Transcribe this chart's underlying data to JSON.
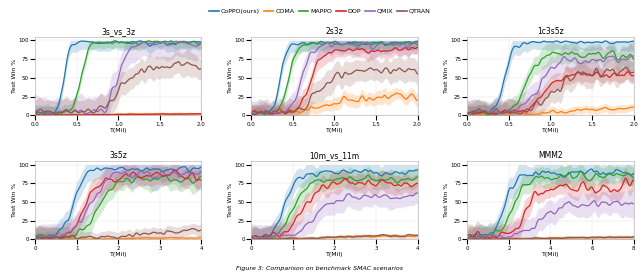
{
  "title": "Figure 3: Comparison on benchmark SMAC scenarios",
  "legend_labels": [
    "CoPPO(ours)",
    "COMA",
    "MAPPO",
    "DOP",
    "QMIX",
    "QTRAN"
  ],
  "colors": [
    "#1f77b4",
    "#ff7f0e",
    "#2ca02c",
    "#d62728",
    "#9467bd",
    "#8c564b"
  ],
  "subplots": [
    {
      "title": "3s_vs_3z",
      "xlabel": "T(Mil)",
      "ylabel": "Test Win %",
      "xmax": 2,
      "xticks": [
        0,
        0.5,
        1.0,
        1.5,
        2.0
      ]
    },
    {
      "title": "2s3z",
      "xlabel": "T(Mil)",
      "ylabel": "Test Win %",
      "xmax": 2,
      "xticks": [
        0,
        0.5,
        1.0,
        1.5,
        2.0
      ]
    },
    {
      "title": "1c3s5z",
      "xlabel": "T(Mil)",
      "ylabel": "Test Win %",
      "xmax": 2,
      "xticks": [
        0,
        0.5,
        1.0,
        1.5,
        2.0
      ]
    },
    {
      "title": "3s5z",
      "xlabel": "T(Mil)",
      "ylabel": "Test Win %",
      "xmax": 4,
      "xticks": [
        0,
        1,
        2,
        3,
        4
      ]
    },
    {
      "title": "10m_vs_11m",
      "xlabel": "T(Mil)",
      "ylabel": "Test Win %",
      "xmax": 4,
      "xticks": [
        0,
        1,
        2,
        3,
        4
      ]
    },
    {
      "title": "MMM2",
      "xlabel": "T(Mil)",
      "ylabel": "Test Win %",
      "xmax": 8,
      "xticks": [
        0,
        2,
        4,
        6,
        8
      ]
    }
  ]
}
